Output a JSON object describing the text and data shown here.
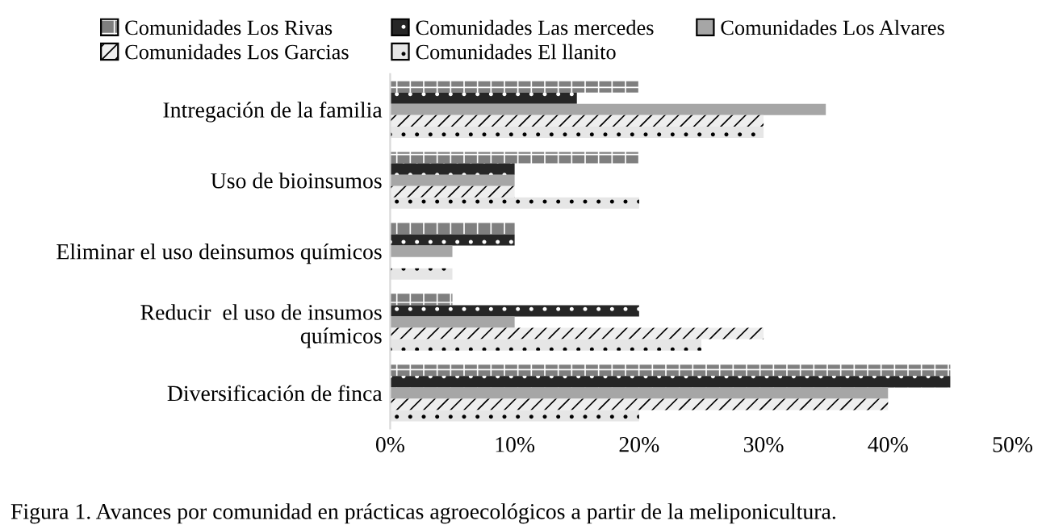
{
  "chart_data": {
    "type": "bar",
    "orientation": "horizontal",
    "categories": [
      "Intregación de la familia",
      "Uso de bioinsumos",
      "Eliminar el uso deinsumos químicos",
      "Reducir  el uso de insumos\nquímicos",
      "Diversificación de finca"
    ],
    "series": [
      {
        "name": "Comunidades Los Rivas",
        "color": "#7f7f7f",
        "values": [
          20,
          20,
          10,
          5,
          45
        ]
      },
      {
        "name": "Comunidades Las mercedes",
        "color": "#262626",
        "values": [
          15,
          10,
          10,
          20,
          45
        ]
      },
      {
        "name": "Comunidades Los Alvares",
        "color": "#a6a6a6",
        "values": [
          35,
          10,
          5,
          10,
          40
        ]
      },
      {
        "name": "Comunidades Los Garcias",
        "color": "#eeeeee",
        "values": [
          30,
          10,
          0,
          30,
          40
        ]
      },
      {
        "name": "Comunidades El llanito",
        "color": "#e6e6e6",
        "values": [
          30,
          20,
          5,
          25,
          20
        ]
      }
    ],
    "xlim": [
      0,
      50
    ],
    "xticks": [
      {
        "value": 0,
        "label": "0%"
      },
      {
        "value": 10,
        "label": "10%"
      },
      {
        "value": 20,
        "label": "20%"
      },
      {
        "value": 30,
        "label": "30%"
      },
      {
        "value": 40,
        "label": "40%"
      },
      {
        "value": 50,
        "label": "50%"
      }
    ],
    "grid": false,
    "legend": "top",
    "annotations": [
      "Figura 1. Avances por comunidad en prácticas agroecológicos a partir de la meliponicultura."
    ]
  }
}
